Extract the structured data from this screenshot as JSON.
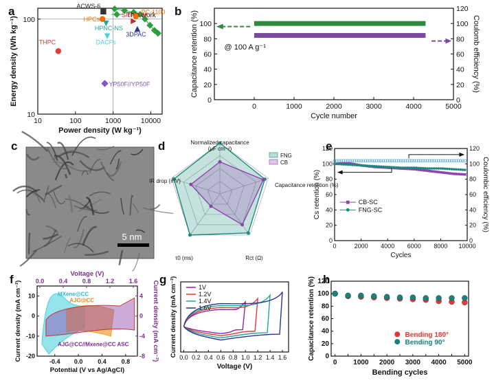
{
  "figure": {
    "panel_letters": [
      "a",
      "b",
      "c",
      "d",
      "e",
      "f",
      "g",
      "h"
    ]
  },
  "chart_data": [
    {
      "panel": "a",
      "type": "scatter",
      "xlabel": "Power density (W kg⁻¹)",
      "ylabel": "Energy density (Wh kg⁻¹)",
      "xscale": "log",
      "yscale": "log",
      "xlim": [
        10,
        20000
      ],
      "ylim": [
        10,
        130
      ],
      "xticks": [
        10,
        100,
        1000,
        10000
      ],
      "xtick_labels": [
        "10",
        "100",
        "1000",
        "10000"
      ],
      "yticks": [
        10,
        100
      ],
      "ytick_labels": [
        "10",
        "100"
      ],
      "points": [
        {
          "label": "THPC",
          "x": 35,
          "y": 46,
          "color": "#e53935",
          "marker": "circle"
        },
        {
          "label": "ACWS-6",
          "x": 550,
          "y": 120,
          "color": "#333333",
          "marker": "square"
        },
        {
          "label": "HPCs",
          "x": 520,
          "y": 100,
          "color": "#ef6c00",
          "marker": "circle"
        },
        {
          "label": "HPNC-NS",
          "x": 650,
          "y": 90,
          "color": "#26a69a",
          "marker": "triangle-down"
        },
        {
          "label": "DACFs",
          "x": 700,
          "y": 66,
          "color": "#4dd0e1",
          "marker": "triangle-down"
        },
        {
          "label": "SRPC-4K",
          "x": 3500,
          "y": 95,
          "color": "#c62828",
          "marker": "triangle-right"
        },
        {
          "label": "PC-1100",
          "x": 4000,
          "y": 107,
          "color": "#ef6c00",
          "marker": "circle"
        },
        {
          "label": "3DPAC",
          "x": 4400,
          "y": 79,
          "color": "#283593",
          "marker": "triangle-up"
        },
        {
          "label": "YP50F//YP50F",
          "x": 600,
          "y": 21,
          "color": "#7e57c2",
          "marker": "diamond"
        }
      ],
      "series": [
        {
          "name": "This work",
          "color": "#2e9e3e",
          "marker": "diamond",
          "x": [
            1100,
            2000,
            3500,
            5200,
            7000,
            9500,
            12500,
            15500
          ],
          "y": [
            128,
            123,
            118,
            112,
            100,
            86,
            76,
            71
          ]
        }
      ]
    },
    {
      "panel": "b",
      "type": "line",
      "xlabel": "Cycle number",
      "ylabel": "Capacitance retention (%)",
      "y2label": "Coulomb efficiency (%)",
      "xlim": [
        -1000,
        5000
      ],
      "ylim": [
        0,
        120
      ],
      "y2lim": [
        0,
        120
      ],
      "xticks": [
        0,
        1000,
        2000,
        3000,
        4000,
        5000
      ],
      "yticks": [
        0,
        20,
        40,
        60,
        80,
        100
      ],
      "y2ticks": [
        0,
        20,
        40,
        60,
        80,
        100,
        120
      ],
      "annotation": "@ 100 A g⁻¹",
      "series": [
        {
          "name": "Capacitance retention",
          "axis": "left",
          "color": "#2e8b3e",
          "x": [
            0,
            4300
          ],
          "y": [
            100,
            99
          ]
        },
        {
          "name": "Coulomb efficiency",
          "axis": "right",
          "color": "#7b4ba0",
          "x": [
            0,
            4300
          ],
          "y": [
            101,
            100
          ]
        }
      ]
    },
    {
      "panel": "c",
      "type": "image",
      "caption": "5 nm"
    },
    {
      "panel": "d",
      "type": "radar",
      "axes": [
        "Normalized capacitance",
        "Capacitance retention (%)",
        "Rct (Ω)",
        "τ0 (ms)",
        "IR drop (mV)"
      ],
      "axis_units": [
        "(μF cm⁻²)",
        "",
        "",
        "",
        ""
      ],
      "series": [
        {
          "name": "FNG",
          "color": "#1b8a7e",
          "values": [
            1.0,
            0.93,
            0.95,
            1.0,
            0.95
          ]
        },
        {
          "name": "CB",
          "color": "#8e44ad",
          "values": [
            0.63,
            0.9,
            0.75,
            0.3,
            0.6
          ]
        }
      ]
    },
    {
      "panel": "e",
      "type": "scatter",
      "xlabel": "Cycles",
      "ylabel": "Cs retention (%)",
      "y2label": "Coulombic efficiency (%)",
      "xlim": [
        0,
        10000
      ],
      "ylim": [
        0,
        120
      ],
      "y2lim": [
        0,
        120
      ],
      "xticks": [
        0,
        2000,
        4000,
        6000,
        8000,
        10000
      ],
      "yticks": [
        0,
        20,
        40,
        60,
        80,
        100,
        120
      ],
      "y2ticks": [
        0,
        20,
        40,
        60,
        80,
        100,
        120
      ],
      "series": [
        {
          "name": "CB-SC",
          "color": "#8e44ad",
          "axis": "left",
          "x": [
            0,
            1000,
            2000,
            3000,
            4000,
            5000,
            6000,
            7000,
            8000,
            9000,
            10000
          ],
          "y": [
            100,
            101,
            98,
            96,
            95,
            94,
            93,
            91,
            89,
            87,
            86
          ]
        },
        {
          "name": "FNG-SC",
          "color": "#1b8a7e",
          "axis": "left",
          "x": [
            0,
            1000,
            2000,
            3000,
            4000,
            5000,
            6000,
            7000,
            8000,
            9000,
            10000
          ],
          "y": [
            100,
            99,
            98,
            97,
            96,
            95,
            95,
            94,
            94,
            93,
            92
          ]
        },
        {
          "name": "FNG-SC CE",
          "color": "#5aa9d6",
          "axis": "right",
          "x": [
            0,
            1000,
            2000,
            3000,
            4000,
            5000,
            6000,
            7000,
            8000,
            9000,
            10000
          ],
          "y": [
            104,
            104,
            104,
            104,
            104,
            104,
            104,
            104,
            104,
            104,
            104
          ]
        }
      ]
    },
    {
      "panel": "f",
      "type": "area",
      "xlabel": "Potential (V vs Ag/AgCl)",
      "x2label": "Voltage (V)",
      "ylabel": "Current density (mA cm⁻²)",
      "y2label": "Current density (mA cm⁻²)",
      "xlim": [
        -0.7,
        1.0
      ],
      "x2lim": [
        0,
        1.6
      ],
      "xticks": [
        -0.4,
        0.0,
        0.4,
        0.8
      ],
      "x2ticks": [
        0.0,
        0.4,
        0.8,
        1.2,
        1.6
      ],
      "ylim": [
        -20,
        15
      ],
      "yticks": [
        -20,
        -10,
        0,
        10
      ],
      "y2lim": [
        -8,
        6
      ],
      "y2ticks": [
        -8,
        -4,
        0,
        4
      ],
      "series": [
        {
          "name": "MXene@CC",
          "color": "#4dd0e1"
        },
        {
          "name": "AJG@CC",
          "color": "#f0a030"
        },
        {
          "name": "AJG@CC//Mxene@CC ASC",
          "color": "#8e44ad"
        }
      ]
    },
    {
      "panel": "g",
      "type": "line",
      "xlabel": "Voltage (V)",
      "ylabel": "Current density (mA cm⁻²)",
      "xlim": [
        -0.05,
        1.7
      ],
      "xticks": [
        0.0,
        0.2,
        0.4,
        0.6,
        0.8,
        1.0,
        1.2,
        1.4,
        1.6
      ],
      "series": [
        {
          "name": "1V",
          "color": "#8e24aa",
          "vmax": 1.0
        },
        {
          "name": "1.2V",
          "color": "#e53935",
          "vmax": 1.2
        },
        {
          "name": "1.4V",
          "color": "#26a69a",
          "vmax": 1.4
        },
        {
          "name": "1.6V",
          "color": "#283593",
          "vmax": 1.6
        }
      ]
    },
    {
      "panel": "h",
      "type": "scatter",
      "xlabel": "Bending cycles",
      "ylabel": "Capacitance retention (%)",
      "xlim": [
        0,
        5000
      ],
      "ylim": [
        0,
        120
      ],
      "xticks": [
        0,
        500,
        1000,
        1500,
        2000,
        2500,
        3000,
        3500,
        4000,
        4500,
        5000
      ],
      "yticks": [
        0,
        20,
        40,
        60,
        80,
        100,
        120
      ],
      "series": [
        {
          "name": "Bending 180°",
          "color": "#e53935",
          "x": [
            0,
            500,
            1000,
            1500,
            2000,
            2500,
            3000,
            3500,
            4000,
            4500,
            5000
          ],
          "y": [
            100,
            96,
            95,
            94,
            93,
            92,
            91,
            90,
            88,
            87,
            86
          ]
        },
        {
          "name": "Bending 90°",
          "color": "#1b7f7a",
          "x": [
            0,
            500,
            1000,
            1500,
            2000,
            2500,
            3000,
            3500,
            4000,
            4500,
            5000
          ],
          "y": [
            100,
            97,
            97,
            96,
            95,
            94,
            94,
            93,
            93,
            93,
            93
          ]
        }
      ]
    }
  ]
}
